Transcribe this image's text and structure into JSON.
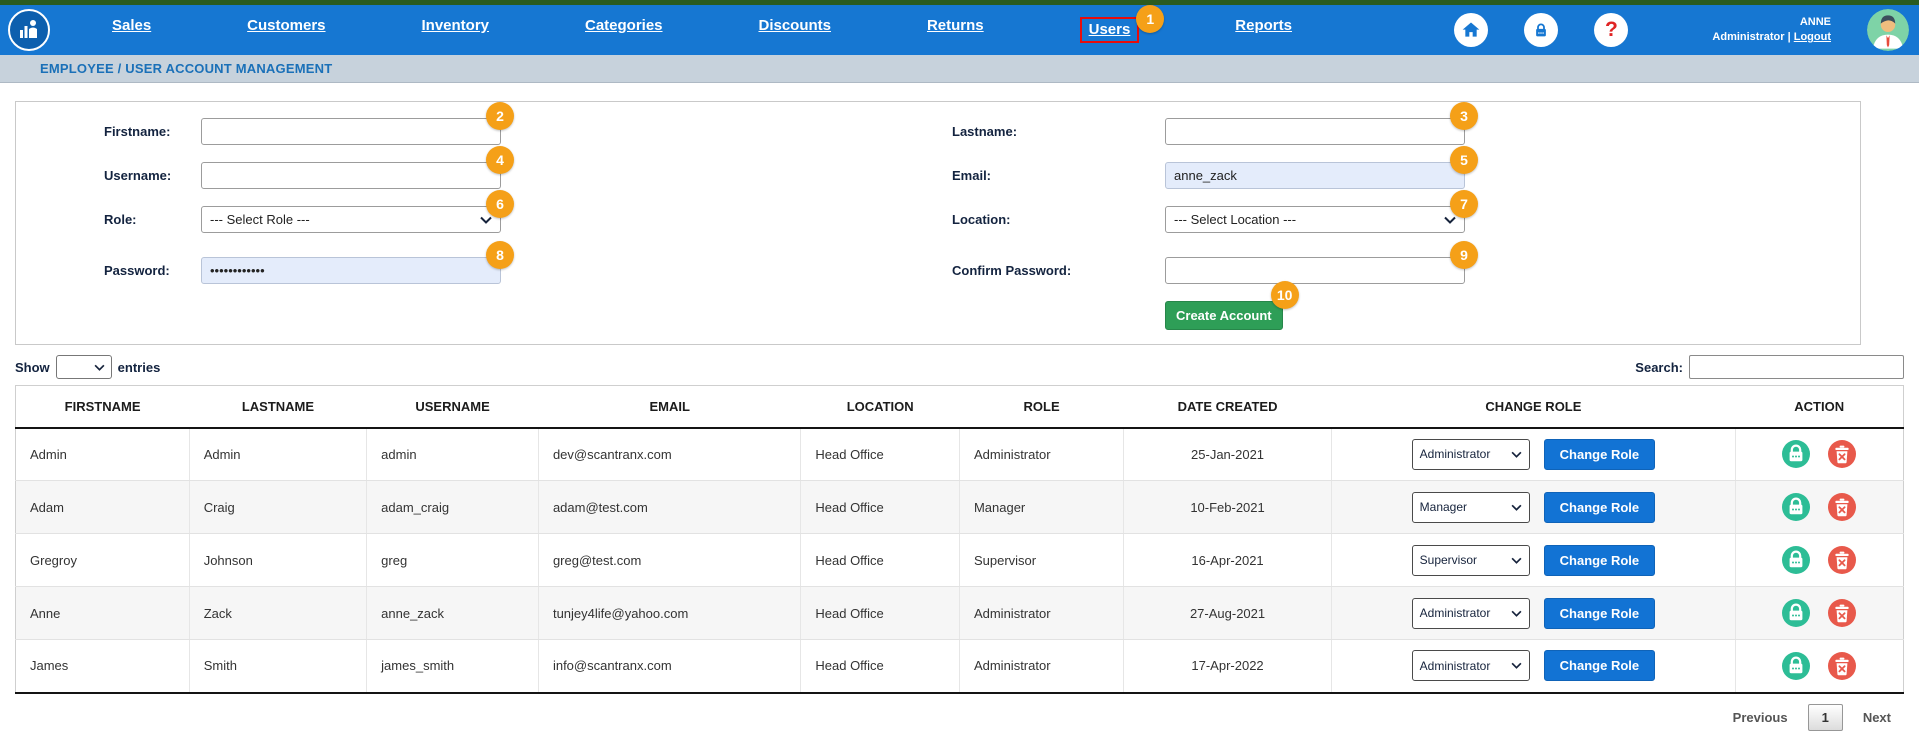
{
  "nav": {
    "items": [
      "Sales",
      "Customers",
      "Inventory",
      "Categories",
      "Discounts",
      "Returns",
      "Users",
      "Reports"
    ],
    "highlighted_item": "Users",
    "annotation_badge": "1",
    "user": {
      "name": "ANNE",
      "role": "Administrator",
      "divider": "|",
      "logout_label": "Logout"
    },
    "icons": {
      "home": "home-icon",
      "lock": "lock-icon",
      "help": "question-mark-icon",
      "avatar": "user-avatar"
    }
  },
  "breadcrumb": "EMPLOYEE / USER ACCOUNT MANAGEMENT",
  "form": {
    "fields": {
      "firstname": {
        "label": "Firstname:",
        "value": "",
        "badge": "2"
      },
      "lastname": {
        "label": "Lastname:",
        "value": "",
        "badge": "3"
      },
      "username": {
        "label": "Username:",
        "value": "",
        "badge": "4"
      },
      "email": {
        "label": "Email:",
        "value": "anne_zack",
        "badge": "5"
      },
      "role": {
        "label": "Role:",
        "value": "--- Select Role ---",
        "badge": "6"
      },
      "location": {
        "label": "Location:",
        "value": "--- Select Location ---",
        "badge": "7"
      },
      "password": {
        "label": "Password:",
        "value": "••••••••••••",
        "badge": "8"
      },
      "confirm_password": {
        "label": "Confirm Password:",
        "value": "",
        "badge": "9"
      }
    },
    "create_button": {
      "label": "Create Account",
      "badge": "10"
    }
  },
  "list_controls": {
    "show_label": "Show",
    "entries_label": "entries",
    "search_label": "Search:",
    "search_value": ""
  },
  "table": {
    "headers": [
      "FIRSTNAME",
      "LASTNAME",
      "USERNAME",
      "EMAIL",
      "LOCATION",
      "ROLE",
      "DATE CREATED",
      "CHANGE ROLE",
      "ACTION"
    ],
    "rows": [
      {
        "firstname": "Admin",
        "lastname": "Admin",
        "username": "admin",
        "email": "dev@scantranx.com",
        "location": "Head Office",
        "role": "Administrator",
        "date_created": "25-Jan-2021",
        "change_role_value": "Administrator",
        "change_role_button": "Change Role"
      },
      {
        "firstname": "Adam",
        "lastname": "Craig",
        "username": "adam_craig",
        "email": "adam@test.com",
        "location": "Head Office",
        "role": "Manager",
        "date_created": "10-Feb-2021",
        "change_role_value": "Manager",
        "change_role_button": "Change Role"
      },
      {
        "firstname": "Gregroy",
        "lastname": "Johnson",
        "username": "greg",
        "email": "greg@test.com",
        "location": "Head Office",
        "role": "Supervisor",
        "date_created": "16-Apr-2021",
        "change_role_value": "Supervisor",
        "change_role_button": "Change Role"
      },
      {
        "firstname": "Anne",
        "lastname": "Zack",
        "username": "anne_zack",
        "email": "tunjey4life@yahoo.com",
        "location": "Head Office",
        "role": "Administrator",
        "date_created": "27-Aug-2021",
        "change_role_value": "Administrator",
        "change_role_button": "Change Role"
      },
      {
        "firstname": "James",
        "lastname": "Smith",
        "username": "james_smith",
        "email": "info@scantranx.com",
        "location": "Head Office",
        "role": "Administrator",
        "date_created": "17-Apr-2022",
        "change_role_value": "Administrator",
        "change_role_button": "Change Role"
      }
    ],
    "row_icons": {
      "unlock": "lock-status-icon",
      "delete": "delete-trash-icon"
    }
  },
  "pagination": {
    "previous": "Previous",
    "page": "1",
    "next": "Next"
  },
  "colors": {
    "nav_blue": "#1677d2",
    "strip_green": "#2a5b20",
    "breadcrumb_bg": "#c7d2dc",
    "badge_orange": "#f5a018",
    "create_green": "#2e9e57",
    "button_blue": "#1273d4",
    "icon_green": "#2dbd96",
    "icon_red": "#e8594b",
    "highlight_red": "#e80c0c"
  }
}
